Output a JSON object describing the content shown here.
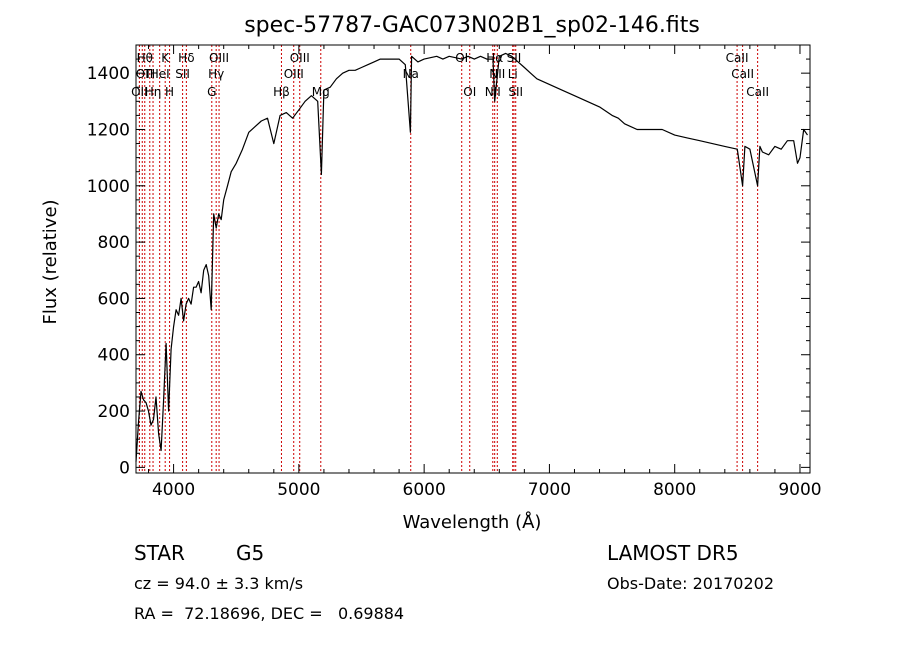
{
  "chart_data": {
    "type": "line",
    "title": "spec-57787-GAC073N02B1_sp02-146.fits",
    "xlabel": "Wavelength (Å)",
    "ylabel": "Flux (relative)",
    "xlim": [
      3700,
      9080
    ],
    "ylim": [
      -20,
      1500
    ],
    "xticks": [
      4000,
      5000,
      6000,
      7000,
      8000,
      9000
    ],
    "yticks": [
      0,
      200,
      400,
      600,
      800,
      1000,
      1200,
      1400
    ],
    "grid": false,
    "series": [
      {
        "x": [
          3700,
          3720,
          3740,
          3760,
          3780,
          3800,
          3820,
          3840,
          3860,
          3880,
          3900,
          3920,
          3940,
          3960,
          3980,
          4000,
          4020,
          4040,
          4060,
          4080,
          4100,
          4120,
          4140,
          4160,
          4180,
          4200,
          4220,
          4240,
          4260,
          4280,
          4300,
          4320,
          4340,
          4360,
          4380,
          4400,
          4430,
          4460,
          4500,
          4550,
          4600,
          4650,
          4700,
          4750,
          4800,
          4850,
          4900,
          4950,
          5000,
          5050,
          5100,
          5150,
          5180,
          5200,
          5250,
          5300,
          5350,
          5400,
          5450,
          5500,
          5550,
          5600,
          5650,
          5700,
          5750,
          5800,
          5850,
          5890,
          5900,
          5950,
          6000,
          6050,
          6100,
          6150,
          6200,
          6250,
          6300,
          6350,
          6400,
          6450,
          6500,
          6550,
          6563,
          6600,
          6650,
          6700,
          6750,
          6800,
          6850,
          6900,
          7000,
          7100,
          7200,
          7300,
          7400,
          7500,
          7550,
          7600,
          7700,
          7800,
          7900,
          8000,
          8100,
          8200,
          8300,
          8400,
          8500,
          8542,
          8560,
          8600,
          8662,
          8680,
          8700,
          8750,
          8800,
          8850,
          8900,
          8950,
          8980,
          9000,
          9030,
          9060
        ],
        "y": [
          20,
          160,
          270,
          240,
          230,
          200,
          150,
          170,
          250,
          120,
          60,
          240,
          440,
          200,
          420,
          500,
          560,
          540,
          600,
          520,
          580,
          600,
          580,
          640,
          640,
          660,
          620,
          700,
          720,
          680,
          560,
          900,
          850,
          900,
          880,
          950,
          1000,
          1050,
          1080,
          1130,
          1190,
          1210,
          1230,
          1240,
          1150,
          1250,
          1260,
          1240,
          1270,
          1300,
          1320,
          1300,
          1040,
          1340,
          1350,
          1380,
          1400,
          1410,
          1410,
          1420,
          1430,
          1440,
          1450,
          1450,
          1450,
          1450,
          1430,
          1190,
          1460,
          1440,
          1450,
          1455,
          1460,
          1450,
          1460,
          1455,
          1450,
          1460,
          1450,
          1460,
          1450,
          1450,
          1300,
          1460,
          1470,
          1460,
          1440,
          1420,
          1400,
          1380,
          1360,
          1340,
          1320,
          1300,
          1280,
          1250,
          1240,
          1220,
          1200,
          1200,
          1200,
          1180,
          1170,
          1160,
          1150,
          1140,
          1130,
          1000,
          1140,
          1130,
          1000,
          1140,
          1120,
          1110,
          1140,
          1130,
          1160,
          1160,
          1080,
          1100,
          1200,
          1180
        ]
      }
    ],
    "line_labels": [
      {
        "wl": 3727,
        "row": 3,
        "text": "OII"
      },
      {
        "wl": 3750,
        "row": 2,
        "text": "OI"
      },
      {
        "wl": 3770,
        "row": 1,
        "text": "Hθ"
      },
      {
        "wl": 3810,
        "row": 2,
        "text": "TI"
      },
      {
        "wl": 3836,
        "row": 3,
        "text": "Hη"
      },
      {
        "wl": 3889,
        "row": 2,
        "text": "HeI"
      },
      {
        "wl": 3933,
        "row": 1,
        "text": "K"
      },
      {
        "wl": 3968,
        "row": 3,
        "text": "H"
      },
      {
        "wl": 4072,
        "row": 2,
        "text": "SII"
      },
      {
        "wl": 4102,
        "row": 1,
        "text": "Hδ"
      },
      {
        "wl": 4305,
        "row": 3,
        "text": "G"
      },
      {
        "wl": 4340,
        "row": 2,
        "text": "Hγ"
      },
      {
        "wl": 4363,
        "row": 1,
        "text": "OIII"
      },
      {
        "wl": 4861,
        "row": 3,
        "text": "Hβ"
      },
      {
        "wl": 4959,
        "row": 2,
        "text": "OIII"
      },
      {
        "wl": 5007,
        "row": 1,
        "text": "OIII"
      },
      {
        "wl": 5175,
        "row": 3,
        "text": "Mg"
      },
      {
        "wl": 5893,
        "row": 2,
        "text": "Na"
      },
      {
        "wl": 6300,
        "row": 1,
        "text": "OI"
      },
      {
        "wl": 6364,
        "row": 3,
        "text": "OI"
      },
      {
        "wl": 6548,
        "row": 3,
        "text": "NII"
      },
      {
        "wl": 6563,
        "row": 1,
        "text": "Hα"
      },
      {
        "wl": 6584,
        "row": 2,
        "text": "NII"
      },
      {
        "wl": 6707,
        "row": 2,
        "text": "Li"
      },
      {
        "wl": 6717,
        "row": 1,
        "text": "SII"
      },
      {
        "wl": 6731,
        "row": 3,
        "text": "SII"
      },
      {
        "wl": 8498,
        "row": 1,
        "text": "CaII"
      },
      {
        "wl": 8542,
        "row": 2,
        "text": "CaII"
      },
      {
        "wl": 8662,
        "row": 3,
        "text": "CaII"
      }
    ]
  },
  "info": {
    "object_class": "STAR",
    "subclass": "G5",
    "survey": "LAMOST DR5",
    "redshift": "cz = 94.0 ± 3.3 km/s",
    "obs_date": "Obs-Date: 20170202",
    "coords": "RA =  72.18696, DEC =   0.69884"
  }
}
